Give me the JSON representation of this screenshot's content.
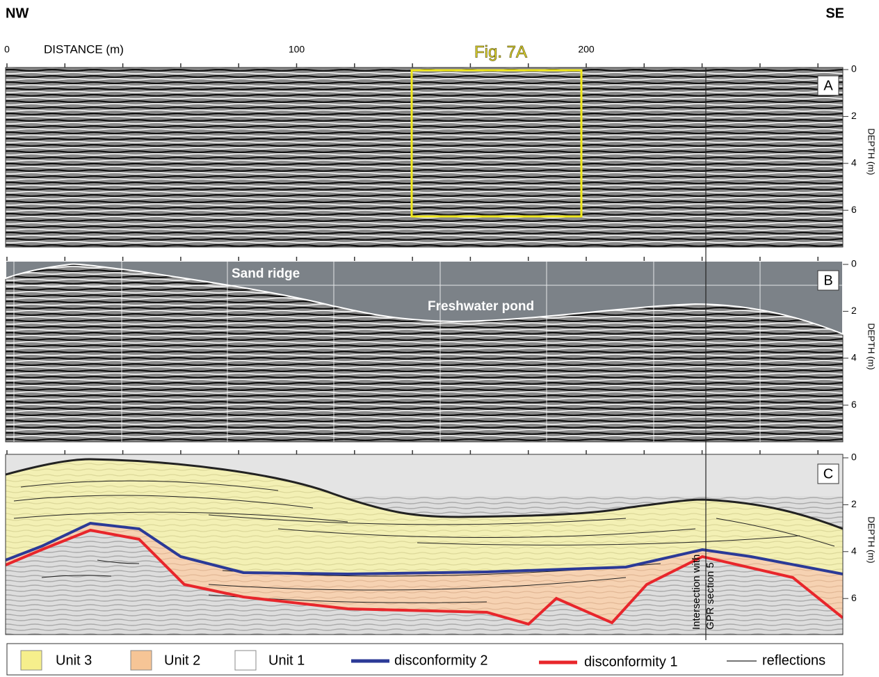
{
  "header": {
    "left": "NW",
    "right": "SE",
    "figure_ref": "Fig. 7A"
  },
  "distance_axis": {
    "label": "DISTANCE (m)",
    "ticks": [
      0,
      100,
      200
    ]
  },
  "panels": [
    {
      "letter": "A",
      "depth_label": "DEPTH (m)",
      "depth_ticks": [
        0,
        2,
        4,
        6
      ]
    },
    {
      "letter": "B",
      "depth_label": "DEPTH (m)",
      "depth_ticks": [
        0,
        2,
        4,
        6
      ],
      "annotations": [
        "Sand ridge",
        "Freshwater pond"
      ]
    },
    {
      "letter": "C",
      "depth_label": "DEPTH (m)",
      "depth_ticks": [
        0,
        2,
        4,
        6
      ],
      "annotations": [
        "Intersection with",
        "GPR section 5"
      ]
    }
  ],
  "legend": [
    "Unit 3",
    "Unit 2",
    "Unit 1",
    "disconformity 2",
    "disconformity 1",
    "reflections"
  ]
}
